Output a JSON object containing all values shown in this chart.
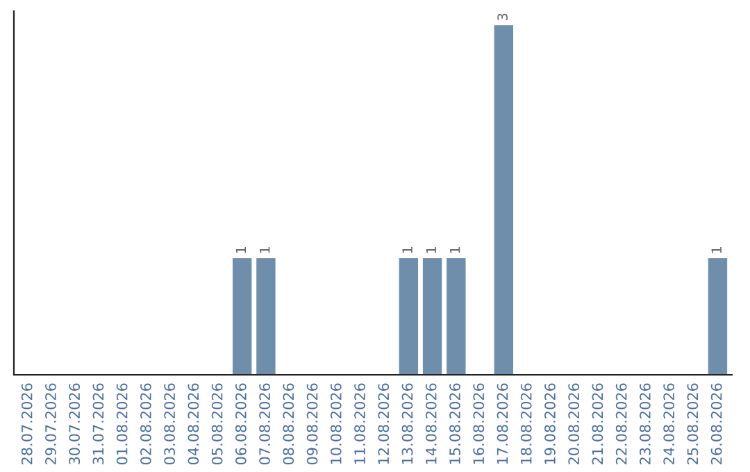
{
  "chart_data": {
    "type": "bar",
    "categories": [
      "28.07.2026",
      "29.07.2026",
      "30.07.2026",
      "31.07.2026",
      "01.08.2026",
      "02.08.2026",
      "03.08.2026",
      "04.08.2026",
      "05.08.2026",
      "06.08.2026",
      "07.08.2026",
      "08.08.2026",
      "09.08.2026",
      "10.08.2026",
      "11.08.2026",
      "12.08.2026",
      "13.08.2026",
      "14.08.2026",
      "15.08.2026",
      "16.08.2026",
      "17.08.2026",
      "18.08.2026",
      "19.08.2026",
      "20.08.2026",
      "21.08.2026",
      "22.08.2026",
      "23.08.2026",
      "24.08.2026",
      "25.08.2026",
      "26.08.2026"
    ],
    "values": [
      0,
      0,
      0,
      0,
      0,
      0,
      0,
      0,
      0,
      1,
      1,
      0,
      0,
      0,
      0,
      0,
      1,
      1,
      1,
      0,
      3,
      0,
      0,
      0,
      0,
      0,
      0,
      0,
      0,
      1
    ],
    "value_labels": [
      null,
      null,
      null,
      null,
      null,
      null,
      null,
      null,
      null,
      "1",
      "1",
      null,
      null,
      null,
      null,
      null,
      "1",
      "1",
      "1",
      null,
      "3",
      null,
      null,
      null,
      null,
      null,
      null,
      null,
      null,
      "1"
    ],
    "color": "#6e8eab",
    "tick_labels": "x",
    "grid": false,
    "legend": false
  }
}
